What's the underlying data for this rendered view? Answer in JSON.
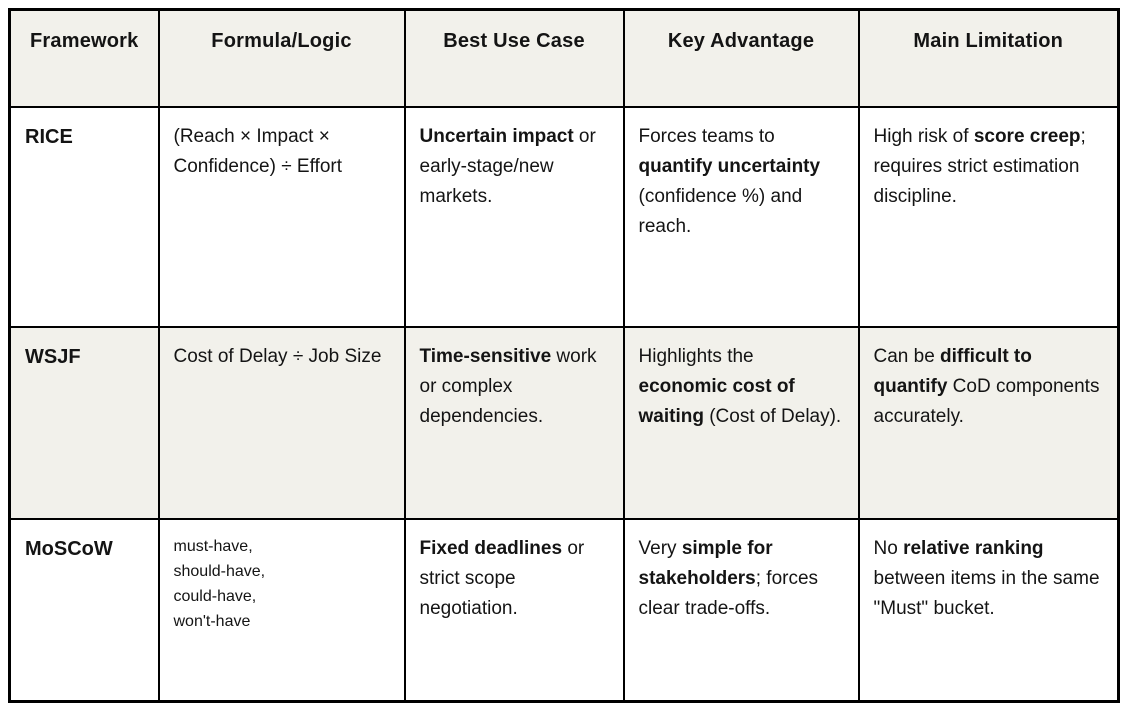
{
  "colors": {
    "header_bg": "#F2F1EB",
    "shaded_row_bg": "#F2F1EB",
    "row_bg": "#FFFFFF",
    "border": "#000000",
    "text": "#141414"
  },
  "table": {
    "columns": [
      {
        "label": "Framework"
      },
      {
        "label": "Formula/Logic"
      },
      {
        "label": "Best Use Case"
      },
      {
        "label": "Key Advantage"
      },
      {
        "label": "Main Limitation"
      }
    ],
    "rows": [
      {
        "framework": "RICE",
        "formula": "(Reach × Impact × Confidence) ÷ Effort",
        "best_use_case": [
          {
            "t": "Uncertain impact",
            "b": true
          },
          {
            "t": " or early-stage/new markets."
          }
        ],
        "key_advantage": [
          {
            "t": "Forces teams to "
          },
          {
            "t": "quantify uncertainty",
            "b": true
          },
          {
            "t": " (confidence %) and reach."
          }
        ],
        "main_limitation": [
          {
            "t": "High risk of "
          },
          {
            "t": "score creep",
            "b": true
          },
          {
            "t": "; requires strict estimation discipline."
          }
        ]
      },
      {
        "framework": "WSJF",
        "formula": "Cost of Delay ÷ Job Size",
        "best_use_case": [
          {
            "t": "Time-sensitive",
            "b": true
          },
          {
            "t": " work or complex dependencies."
          }
        ],
        "key_advantage": [
          {
            "t": "Highlights the "
          },
          {
            "t": "economic cost of waiting",
            "b": true
          },
          {
            "t": " (Cost of Delay)."
          }
        ],
        "main_limitation": [
          {
            "t": "Can be "
          },
          {
            "t": "difficult to quantify",
            "b": true
          },
          {
            "t": " CoD components accurately."
          }
        ]
      },
      {
        "framework": "MoSCoW",
        "formula": "must-have,\nshould-have,\ncould-have,\nwon't-have",
        "best_use_case": [
          {
            "t": "Fixed deadlines",
            "b": true
          },
          {
            "t": " or strict scope negotiation."
          }
        ],
        "key_advantage": [
          {
            "t": "Very "
          },
          {
            "t": "simple for stakeholders",
            "b": true
          },
          {
            "t": "; forces clear trade-offs."
          }
        ],
        "main_limitation": [
          {
            "t": "No "
          },
          {
            "t": "relative ranking",
            "b": true
          },
          {
            "t": " between items in the same \"Must\" bucket."
          }
        ]
      }
    ]
  }
}
